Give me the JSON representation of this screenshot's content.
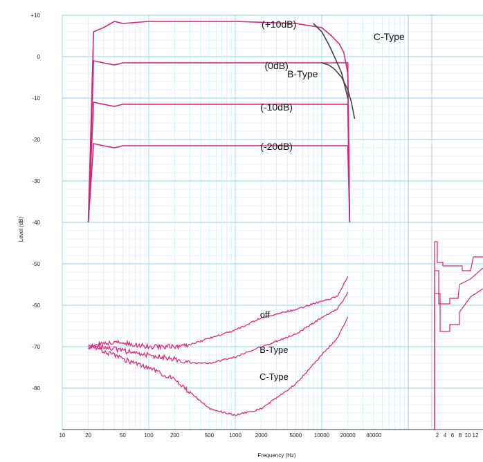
{
  "chart_data": {
    "type": "line",
    "xlabel": "Frequency (Hz)",
    "ylabel": "Level (dB)",
    "x_scale": "log",
    "xlim": [
      10,
      100000
    ],
    "ylim": [
      -90,
      10
    ],
    "grid": true,
    "y_ticks": [
      "+10",
      "0",
      "-10",
      "-20",
      "-30",
      "-40",
      "-50",
      "-60",
      "-70",
      "-80"
    ],
    "x_ticks": [
      "10",
      "20",
      "50",
      "100",
      "200",
      "500",
      "1000",
      "2000",
      "5000",
      "10000",
      "20000",
      "40000"
    ],
    "right_axis_ticks": [
      "2",
      "4",
      "6",
      "8",
      "10",
      "12"
    ],
    "annotations": [
      "(+10dB)",
      "(0dB)",
      "(-10dB)",
      "(-20dB)",
      "B-Type",
      "C-Type",
      "off",
      "B-Type",
      "C-Type"
    ],
    "series": [
      {
        "name": "(+10dB)",
        "color": "#d0257a",
        "x": [
          20,
          23,
          30,
          40,
          50,
          100,
          1000,
          5000,
          10000,
          13000,
          16000,
          18000,
          20000,
          21000
        ],
        "y": [
          -40,
          6,
          7,
          8.5,
          8,
          8.5,
          8.5,
          8,
          7,
          5,
          3,
          1,
          -4,
          -40
        ]
      },
      {
        "name": "(0dB)",
        "color": "#d0257a",
        "x": [
          20,
          23,
          30,
          40,
          50,
          100,
          1000,
          10000,
          20000,
          21000
        ],
        "y": [
          -40,
          -1,
          -1.5,
          -2,
          -1.5,
          -1.5,
          -1.5,
          -1.5,
          -1.5,
          -40
        ]
      },
      {
        "name": "(-10dB)",
        "color": "#d0257a",
        "x": [
          20,
          23,
          30,
          40,
          50,
          100,
          1000,
          10000,
          20000,
          21000
        ],
        "y": [
          -40,
          -11,
          -11.5,
          -12,
          -11.5,
          -11.5,
          -11.5,
          -11.5,
          -11.5,
          -40
        ]
      },
      {
        "name": "(-20dB)",
        "color": "#d0257a",
        "x": [
          20,
          23,
          30,
          40,
          50,
          100,
          1000,
          10000,
          20000,
          21000
        ],
        "y": [
          -40,
          -21,
          -21.5,
          -22,
          -21.5,
          -21.5,
          -21.5,
          -21.5,
          -21.5,
          -40
        ]
      },
      {
        "name": "off",
        "color": "#e0287f",
        "x": [
          20,
          22,
          30,
          50,
          100,
          200,
          300,
          500,
          1000,
          2000,
          5000,
          10000,
          15000,
          20000
        ],
        "y": [
          -70,
          -70,
          -69,
          -69,
          -70,
          -70,
          -69.5,
          -68,
          -66,
          -63,
          -61,
          -59,
          -58,
          -53
        ]
      },
      {
        "name": "B-Type",
        "color": "#e0287f",
        "x": [
          20,
          22,
          30,
          50,
          100,
          200,
          300,
          500,
          1000,
          2000,
          5000,
          10000,
          15000,
          20000
        ],
        "y": [
          -70,
          -70,
          -70,
          -71,
          -72,
          -73,
          -74,
          -74,
          -72.5,
          -70,
          -67,
          -63,
          -61,
          -57
        ]
      },
      {
        "name": "C-Type",
        "color": "#e0287f",
        "x": [
          20,
          22,
          30,
          50,
          100,
          200,
          300,
          500,
          1000,
          2000,
          5000,
          10000,
          15000,
          20000
        ],
        "y": [
          -70,
          -70,
          -71,
          -73,
          -75,
          -78,
          -81,
          -85,
          -86.5,
          -85,
          -79,
          -72,
          -68,
          -63
        ]
      },
      {
        "name": "B-Type",
        "color": "#444444",
        "x": [
          10000,
          12000,
          14000,
          17000,
          20000,
          22000,
          24000
        ],
        "y": [
          -1.5,
          -2,
          -3,
          -5,
          -8,
          -11,
          -15
        ]
      },
      {
        "name": "C-Type",
        "color": "#444444",
        "x": [
          8000,
          10000,
          12000,
          14000,
          17000,
          20000
        ],
        "y": [
          8,
          6,
          3,
          0,
          -4,
          -10
        ]
      }
    ]
  }
}
